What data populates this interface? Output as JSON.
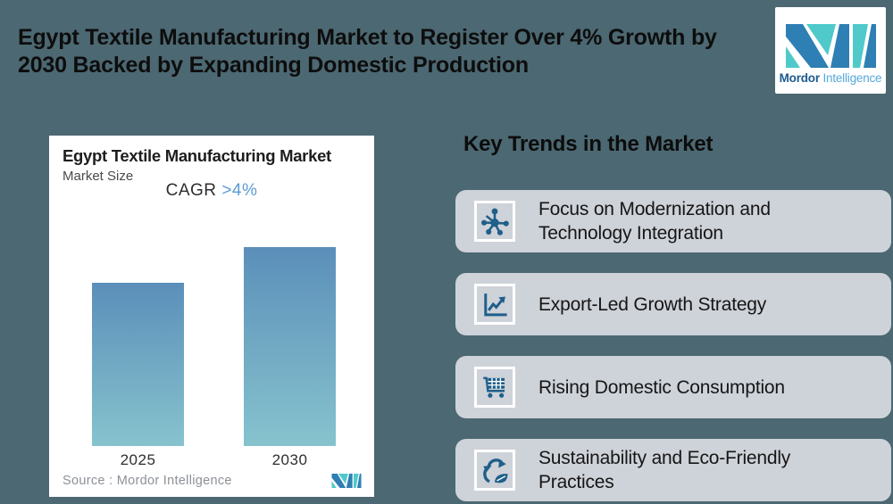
{
  "page": {
    "background_color": "#4C6872",
    "accent_blue": "#5B9BD5",
    "card_gray": "#CED2D9",
    "icon_blue": "#1F5F8A"
  },
  "header": {
    "title_line1": "Egypt Textile Manufacturing Market to Register Over 4% Growth by",
    "title_line2": "2030 Backed by Expanding Domestic Production",
    "logo": {
      "brand_bold": "Mordor",
      "brand_light": "Intelligence",
      "teal": "#4FC9C9",
      "blue": "#2E7FB3"
    }
  },
  "chart_card": {
    "title": "Egypt Textile Manufacturing Market",
    "subtitle": "Market Size",
    "cagr_label": "CAGR",
    "cagr_value": ">4%",
    "source": "Source :  Mordor Intelligence"
  },
  "chart_data": {
    "type": "bar",
    "title": "Egypt Textile Manufacturing Market",
    "subtitle": "Market Size",
    "categories": [
      "2025",
      "2030"
    ],
    "values": [
      82,
      100
    ],
    "units": "relative market size index (2030 = 100); no numeric axis shown",
    "cagr_annotation": "CAGR >4%",
    "xlabel": "",
    "ylabel": "Market Size",
    "grid": false,
    "legend": false,
    "bar_gradient_top": "#5B8FBA",
    "bar_gradient_bottom": "#86C3CE"
  },
  "trends": {
    "heading": "Key Trends in the Market",
    "items": [
      {
        "icon": "network-hub-icon",
        "label": "Focus on Modernization and Technology Integration"
      },
      {
        "icon": "growth-chart-icon",
        "label": "Export-Led Growth Strategy"
      },
      {
        "icon": "shopping-cart-icon",
        "label": "Rising Domestic Consumption"
      },
      {
        "icon": "recycle-leaf-icon",
        "label": "Sustainability and Eco-Friendly Practices"
      }
    ]
  }
}
